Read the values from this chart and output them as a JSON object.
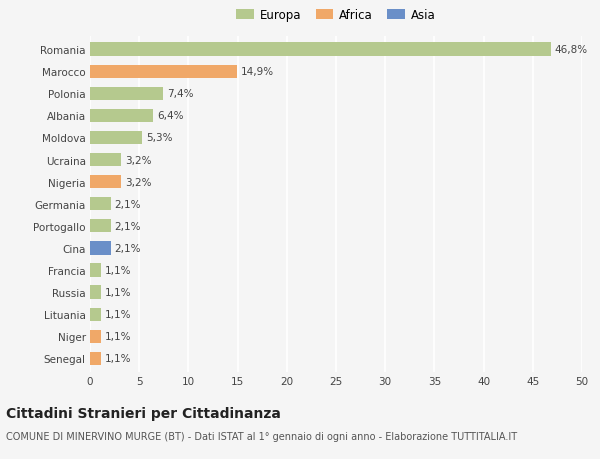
{
  "categories": [
    "Romania",
    "Marocco",
    "Polonia",
    "Albania",
    "Moldova",
    "Ucraina",
    "Nigeria",
    "Germania",
    "Portogallo",
    "Cina",
    "Francia",
    "Russia",
    "Lituania",
    "Niger",
    "Senegal"
  ],
  "values": [
    46.8,
    14.9,
    7.4,
    6.4,
    5.3,
    3.2,
    3.2,
    2.1,
    2.1,
    2.1,
    1.1,
    1.1,
    1.1,
    1.1,
    1.1
  ],
  "labels": [
    "46,8%",
    "14,9%",
    "7,4%",
    "6,4%",
    "5,3%",
    "3,2%",
    "3,2%",
    "2,1%",
    "2,1%",
    "2,1%",
    "1,1%",
    "1,1%",
    "1,1%",
    "1,1%",
    "1,1%"
  ],
  "continents": [
    "Europa",
    "Africa",
    "Europa",
    "Europa",
    "Europa",
    "Europa",
    "Africa",
    "Europa",
    "Europa",
    "Asia",
    "Europa",
    "Europa",
    "Europa",
    "Africa",
    "Africa"
  ],
  "colors": {
    "Europa": "#b5c98e",
    "Africa": "#f0a868",
    "Asia": "#6a8fc8"
  },
  "title": "Cittadini Stranieri per Cittadinanza",
  "subtitle": "COMUNE DI MINERVINO MURGE (BT) - Dati ISTAT al 1° gennaio di ogni anno - Elaborazione TUTTITALIA.IT",
  "xlim": [
    0,
    50
  ],
  "xticks": [
    0,
    5,
    10,
    15,
    20,
    25,
    30,
    35,
    40,
    45,
    50
  ],
  "background_color": "#f5f5f5",
  "grid_color": "#ffffff",
  "bar_height": 0.6,
  "title_fontsize": 10,
  "subtitle_fontsize": 7,
  "label_fontsize": 7.5,
  "tick_fontsize": 7.5,
  "legend_fontsize": 8.5
}
